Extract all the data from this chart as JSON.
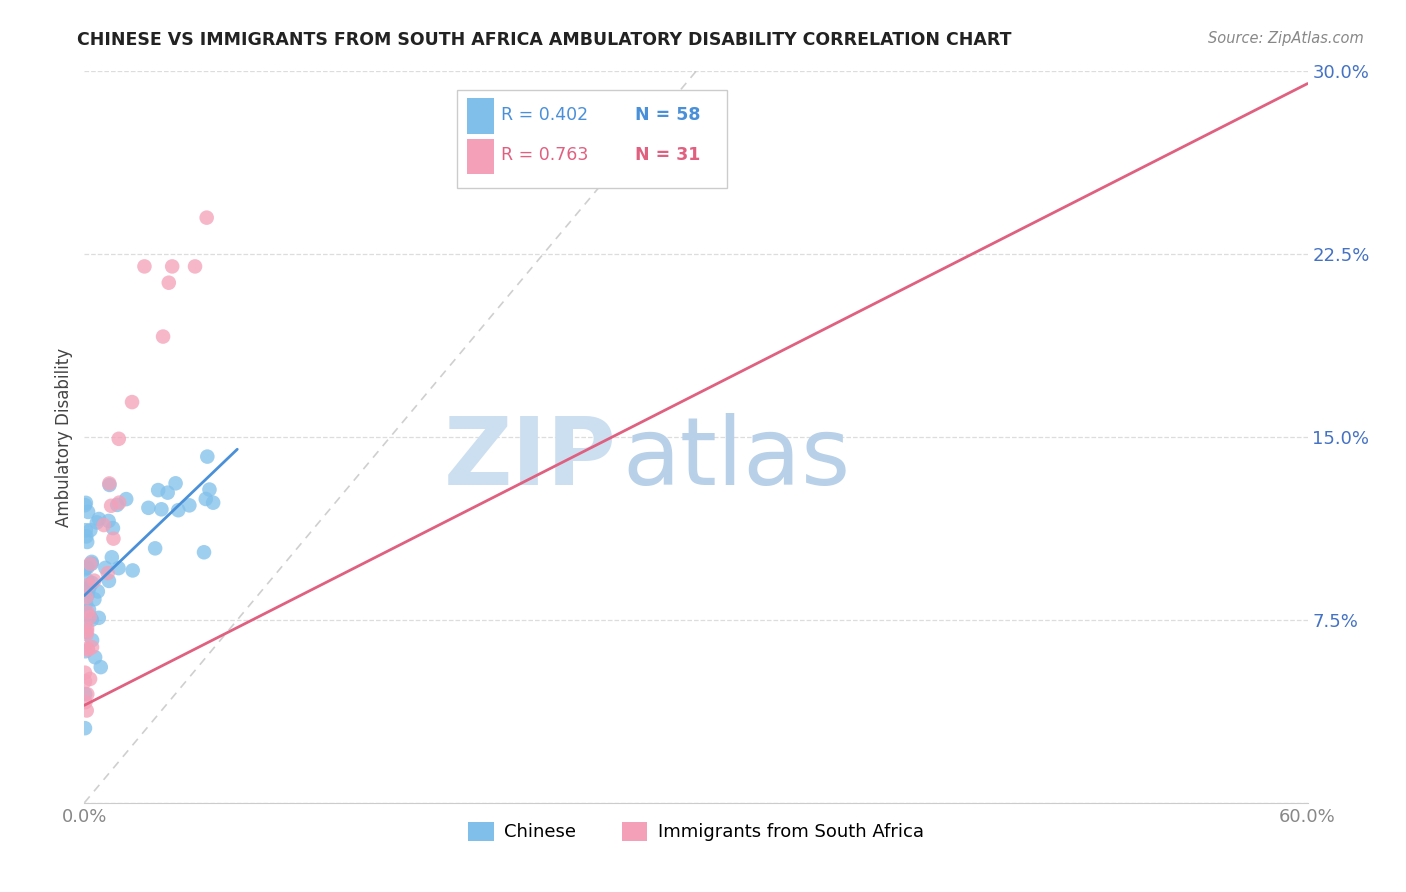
{
  "title": "CHINESE VS IMMIGRANTS FROM SOUTH AFRICA AMBULATORY DISABILITY CORRELATION CHART",
  "source": "Source: ZipAtlas.com",
  "ylabel": "Ambulatory Disability",
  "xlim": [
    0.0,
    0.6
  ],
  "ylim": [
    0.0,
    0.3
  ],
  "xticks": [
    0.0,
    0.1,
    0.2,
    0.3,
    0.4,
    0.5,
    0.6
  ],
  "xticklabels": [
    "0.0%",
    "",
    "",
    "",
    "",
    "",
    "60.0%"
  ],
  "yticks": [
    0.0,
    0.075,
    0.15,
    0.225,
    0.3
  ],
  "yticklabels": [
    "",
    "7.5%",
    "15.0%",
    "22.5%",
    "30.0%"
  ],
  "grid_color": "#dddddd",
  "background_color": "#ffffff",
  "legend_r1": "R = 0.402",
  "legend_n1": "N = 58",
  "legend_r2": "R = 0.763",
  "legend_n2": "N = 31",
  "blue_color": "#7fbfea",
  "pink_color": "#f4a0b8",
  "blue_line_color": "#4a90d9",
  "pink_line_color": "#e06080",
  "dash_line_color": "#bbbbbb",
  "ytick_color": "#4472c4",
  "xtick_color": "#888888",
  "title_color": "#222222",
  "source_color": "#888888",
  "watermark_color": "#dce8f5",
  "blue_line_x": [
    0.0,
    0.075
  ],
  "blue_line_y": [
    0.085,
    0.145
  ],
  "pink_line_x": [
    0.0,
    0.6
  ],
  "pink_line_y": [
    0.04,
    0.295
  ],
  "dash_line_x": [
    0.0,
    0.3
  ],
  "dash_line_y": [
    0.0,
    0.3
  ]
}
